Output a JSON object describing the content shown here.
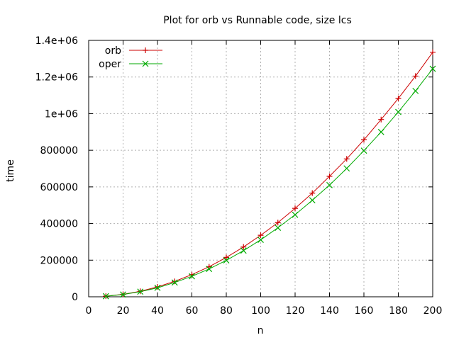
{
  "chart_data": {
    "type": "line",
    "title": "Plot for orb vs Runnable code, size lcs",
    "xlabel": "n",
    "ylabel": "time",
    "xlim": [
      0,
      200
    ],
    "ylim": [
      0,
      1400000
    ],
    "x_ticks": [
      0,
      20,
      40,
      60,
      80,
      100,
      120,
      140,
      160,
      180,
      200
    ],
    "x_tick_labels": [
      "0",
      "20",
      "40",
      "60",
      "80",
      "100",
      "120",
      "140",
      "160",
      "180",
      "200"
    ],
    "y_ticks": [
      0,
      200000,
      400000,
      600000,
      800000,
      1000000,
      1200000,
      1400000
    ],
    "y_tick_labels": [
      "0",
      "200000",
      "400000",
      "600000",
      "800000",
      "1e+06",
      "1.2e+06",
      "1.4e+06"
    ],
    "grid": true,
    "legend_position": "top-left",
    "x": [
      10,
      20,
      30,
      40,
      50,
      60,
      70,
      80,
      90,
      100,
      110,
      120,
      130,
      140,
      150,
      160,
      170,
      180,
      190,
      200
    ],
    "series": [
      {
        "name": "orb",
        "color": "#cc0000",
        "marker": "plus",
        "values": [
          3400,
          13500,
          30000,
          54000,
          84000,
          121000,
          164000,
          215000,
          272000,
          336000,
          405000,
          483000,
          566000,
          658000,
          753000,
          857000,
          968000,
          1083000,
          1205000,
          1335000
        ]
      },
      {
        "name": "oper",
        "color": "#00aa00",
        "marker": "cross",
        "values": [
          3100,
          12500,
          28000,
          49000,
          78000,
          112000,
          152000,
          199000,
          252000,
          311000,
          377000,
          448000,
          527000,
          610000,
          701000,
          798000,
          900000,
          1009000,
          1124000,
          1245000
        ]
      }
    ]
  }
}
